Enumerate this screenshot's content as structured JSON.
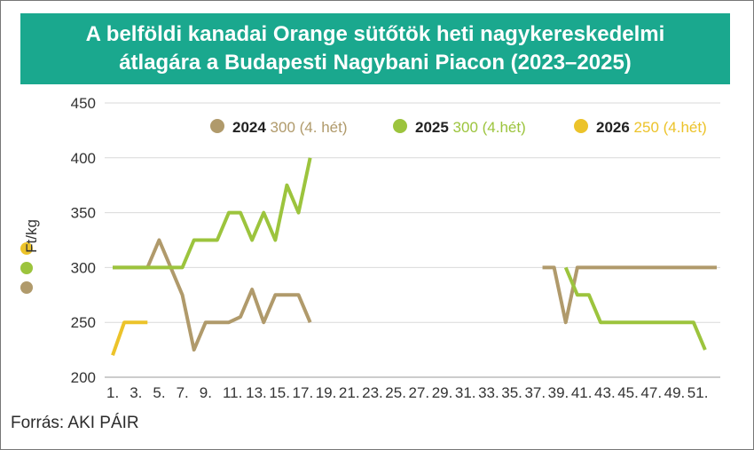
{
  "chart_data": {
    "type": "line",
    "title": "A belföldi kanadai Orange sütőtök  heti nagykereskedelmi átlagára a Budapesti Nagybani Piacon (2023–2025)",
    "title_lines": [
      "A belföldi kanadai Orange sütőtök  heti nagykereskedelmi",
      "átlagára a Budapesti Nagybani Piacon (2023–2025)"
    ],
    "ylabel": "Ft/kg",
    "xlabel": "",
    "ylim": [
      200,
      450
    ],
    "yticks": [
      "200",
      "250",
      "300",
      "350",
      "400",
      "450"
    ],
    "xlim": [
      1,
      53
    ],
    "xticks": [
      "1.",
      "3.",
      "5.",
      "7.",
      "9.",
      "11.",
      "13.",
      "15.",
      "17.",
      "19.",
      "21.",
      "23.",
      "25.",
      "27.",
      "29.",
      "31.",
      "33.",
      "35.",
      "37.",
      "39.",
      "41.",
      "43.",
      "45.",
      "47.",
      "49.",
      "51."
    ],
    "grid": true,
    "legend_position": "top",
    "series": [
      {
        "name": "2024",
        "legend_note": "300 (4. hét)",
        "color": "#b09a6b",
        "segments": [
          {
            "x": [
              1,
              2,
              3,
              4,
              5,
              6,
              7,
              8,
              9,
              10,
              11,
              12,
              13,
              14,
              15,
              16,
              17,
              18
            ],
            "y": [
              300,
              300,
              300,
              300,
              325,
              300,
              275,
              225,
              250,
              250,
              250,
              255,
              280,
              250,
              275,
              275,
              275,
              250
            ]
          },
          {
            "x": [
              38,
              39,
              40,
              41,
              42,
              43,
              44,
              45,
              46,
              47,
              48,
              49,
              50,
              51,
              52,
              53
            ],
            "y": [
              300,
              300,
              250,
              300,
              300,
              300,
              300,
              300,
              300,
              300,
              300,
              300,
              300,
              300,
              300,
              300
            ]
          }
        ]
      },
      {
        "name": "2025",
        "legend_note": "300 (4.hét)",
        "color": "#9cc43d",
        "segments": [
          {
            "x": [
              1,
              2,
              3,
              4,
              5,
              6,
              7,
              8,
              9,
              10,
              11,
              12,
              13,
              14,
              15,
              16,
              17,
              18
            ],
            "y": [
              300,
              300,
              300,
              300,
              300,
              300,
              300,
              325,
              325,
              325,
              350,
              350,
              325,
              350,
              325,
              375,
              350,
              400
            ]
          },
          {
            "x": [
              40,
              41,
              42,
              43,
              44,
              45,
              46,
              47,
              48,
              49,
              50,
              51,
              52
            ],
            "y": [
              300,
              275,
              275,
              250,
              250,
              250,
              250,
              250,
              250,
              250,
              250,
              250,
              225
            ]
          }
        ]
      },
      {
        "name": "2026",
        "legend_note": "250 (4.hét)",
        "color": "#ecc32a",
        "segments": [
          {
            "x": [
              1,
              2,
              3,
              4
            ],
            "y": [
              220,
              250,
              250,
              250
            ]
          }
        ]
      }
    ]
  },
  "source": "Forrás: AKI PÁIR"
}
